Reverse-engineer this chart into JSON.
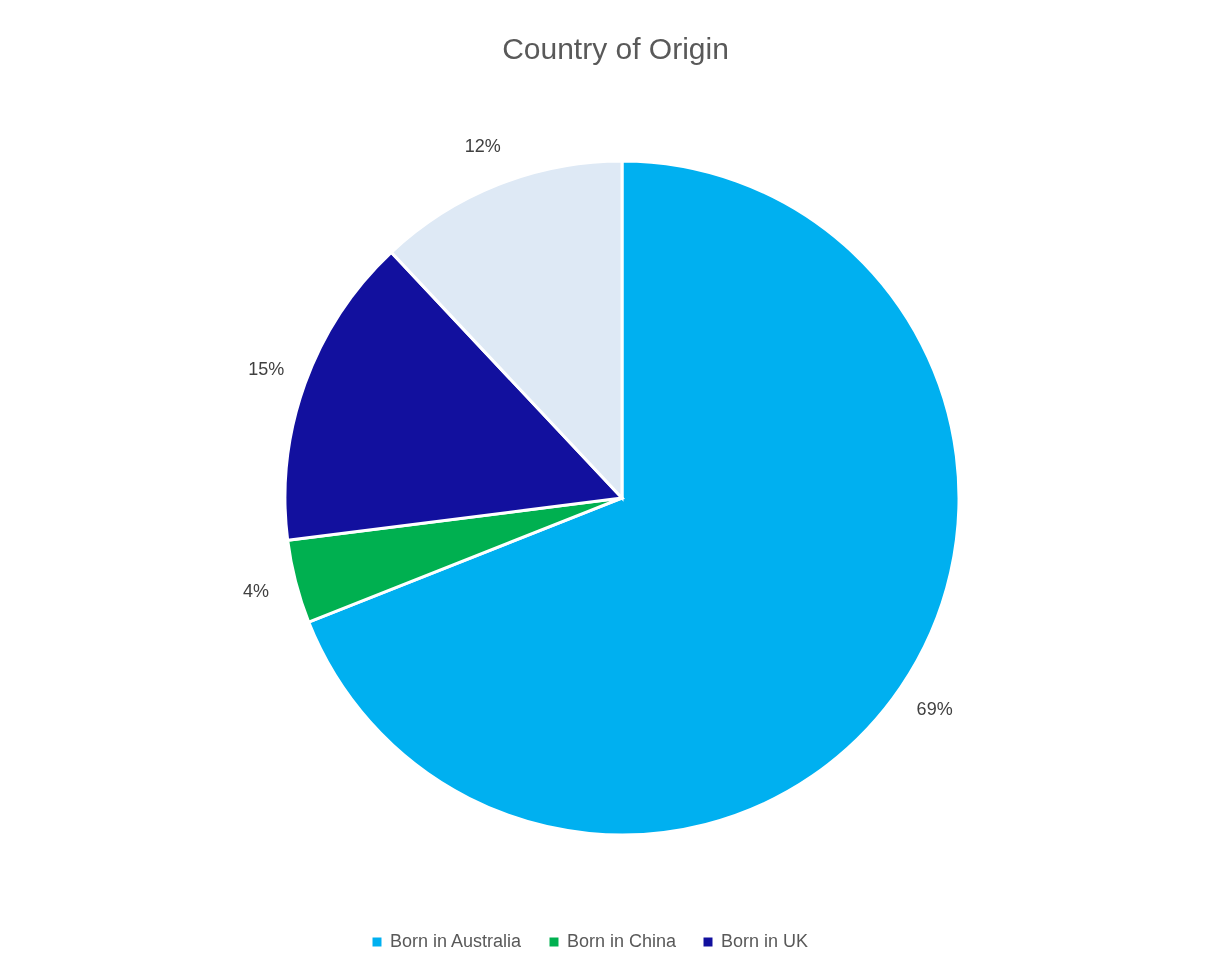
{
  "chart_data": {
    "type": "pie",
    "title": "Country of Origin",
    "categories": [
      "Born in Australia",
      "Born in China",
      "Born in UK",
      null
    ],
    "values": [
      69,
      4,
      15,
      12
    ],
    "colors": [
      "#00b0f0",
      "#00b050",
      "#12109e",
      "#dee9f5"
    ],
    "value_labels": [
      "69%",
      "4%",
      "15%",
      "12%"
    ],
    "legend": "bottom"
  }
}
